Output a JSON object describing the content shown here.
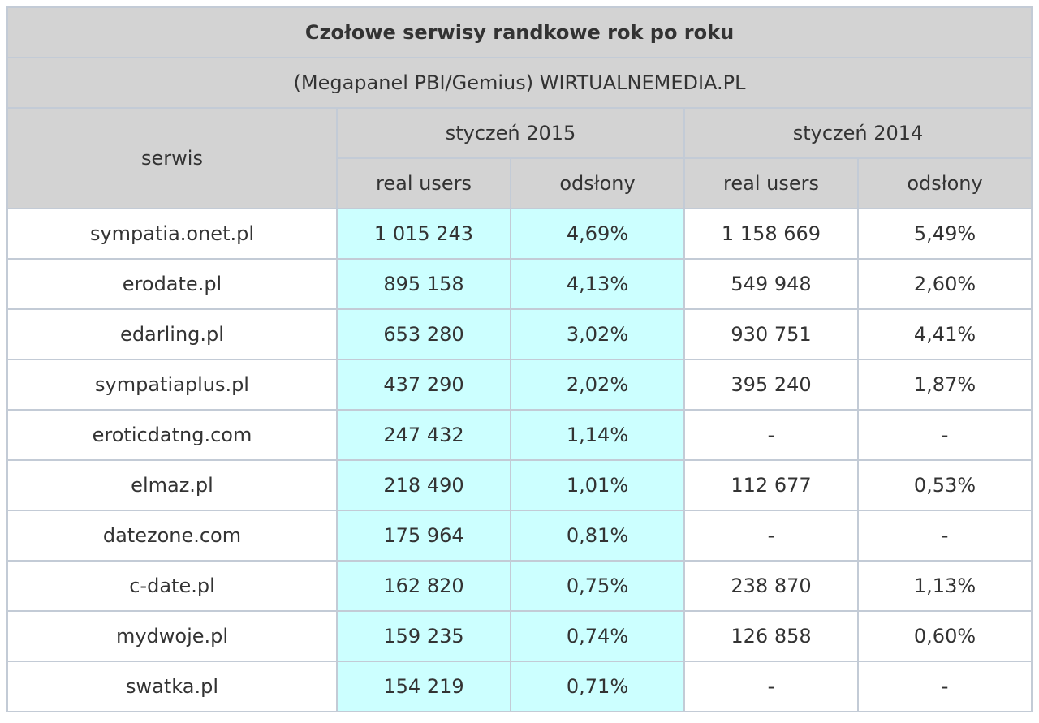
{
  "chart_data": {
    "type": "table",
    "title": "Czołowe serwisy randkowe rok po roku",
    "subtitle": "(Megapanel PBI/Gemius) WIRTUALNEMEDIA.PL",
    "service_header": "serwis",
    "periods": [
      "styczeń 2015",
      "styczeń 2014"
    ],
    "metrics": [
      "real users",
      "odsłony"
    ],
    "rows": [
      [
        "sympatia.onet.pl",
        "1 015 243",
        "4,69%",
        "1 158 669",
        "5,49%"
      ],
      [
        "erodate.pl",
        "895 158",
        "4,13%",
        "549 948",
        "2,60%"
      ],
      [
        "edarling.pl",
        "653 280",
        "3,02%",
        "930 751",
        "4,41%"
      ],
      [
        "sympatiaplus.pl",
        "437 290",
        "2,02%",
        "395 240",
        "1,87%"
      ],
      [
        "eroticdatng.com",
        "247 432",
        "1,14%",
        "-",
        "-"
      ],
      [
        "elmaz.pl",
        "218 490",
        "1,01%",
        "112 677",
        "0,53%"
      ],
      [
        "datezone.com",
        "175 964",
        "0,81%",
        "-",
        "-"
      ],
      [
        "c-date.pl",
        "162 820",
        "0,75%",
        "238 870",
        "1,13%"
      ],
      [
        "mydwoje.pl",
        "159 235",
        "0,74%",
        "126 858",
        "0,60%"
      ],
      [
        "swatka.pl",
        "154 219",
        "0,71%",
        "-",
        "-"
      ]
    ]
  },
  "colors": {
    "header_bg": "#d3d3d3",
    "highlight_bg": "#ccffff",
    "border": "#c3cbd6",
    "text": "#333333"
  }
}
